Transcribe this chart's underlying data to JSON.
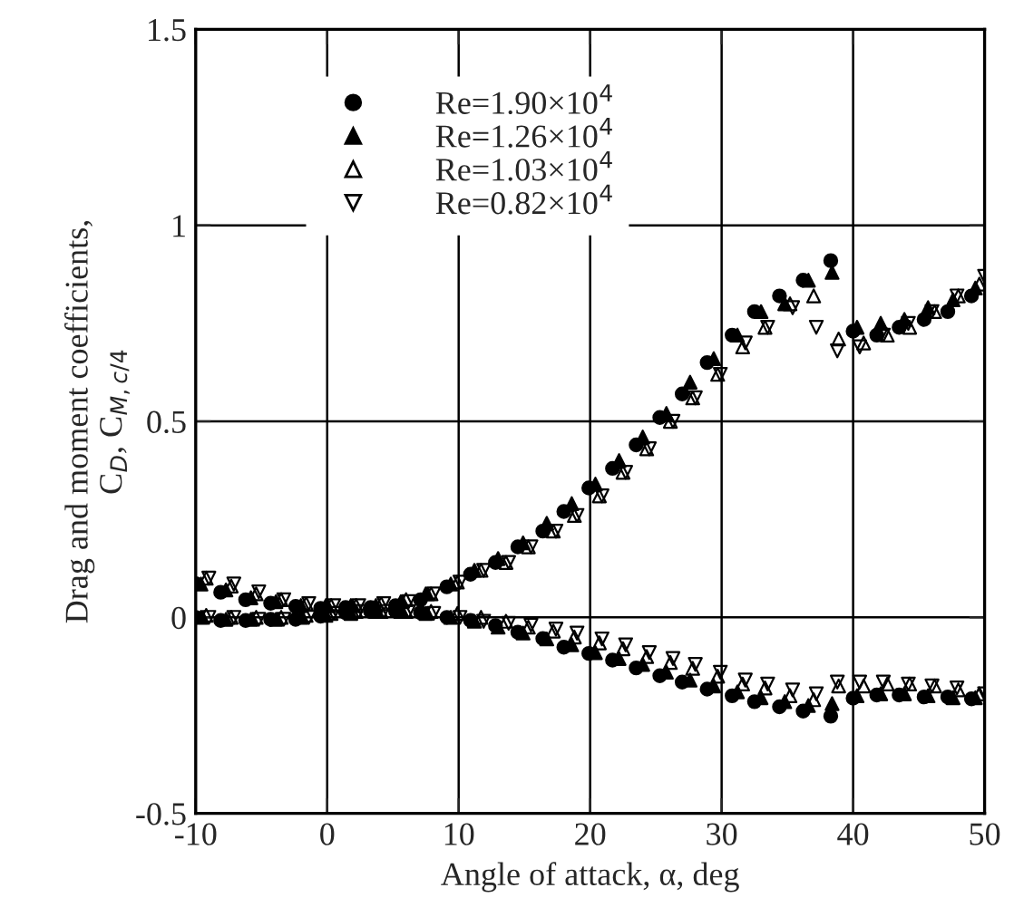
{
  "chart_data": {
    "type": "scatter",
    "xlabel": "Angle of attack, α, deg",
    "ylabel": "Drag and moment coefficients,\nC$_{D}$, C$_{M,c/4}$",
    "xlim": [
      -10,
      50
    ],
    "xticks": [
      -10,
      0,
      10,
      20,
      30,
      40,
      50
    ],
    "ylim": [
      -0.5,
      1.5
    ],
    "yticks": [
      -0.5,
      0,
      0.5,
      1,
      1.5
    ],
    "grid": true,
    "legend": "top left",
    "series": [
      {
        "name": "Re=1.90×10$^{4}$",
        "color": "#000000",
        "marker": "circle",
        "x": [
          -10,
          -8.1,
          -6.2,
          -4.3,
          -2.4,
          -0.5,
          1.4,
          3.3,
          5.2,
          7.1,
          9.1,
          10.9,
          12.8,
          14.5,
          16.4,
          18.0,
          19.9,
          21.7,
          23.5,
          25.3,
          27.0,
          28.9,
          30.8,
          32.5,
          34.4,
          36.2,
          38.3,
          40.0,
          41.8,
          43.5,
          45.4,
          47.2,
          49.0,
          -10,
          -8.1,
          -6.2,
          -4.3,
          -2.4,
          -0.5,
          1.4,
          3.3,
          5.2,
          7.1,
          9.1,
          10.9,
          12.8,
          14.5,
          16.4,
          18.0,
          19.9,
          21.7,
          23.5,
          25.3,
          27.0,
          28.9,
          30.8,
          32.5,
          34.4,
          36.2,
          38.3,
          40.0,
          41.8,
          43.5,
          45.4,
          47.2,
          49.0
        ],
        "values": [
          0.086,
          0.064,
          0.045,
          0.036,
          0.028,
          0.023,
          0.025,
          0.025,
          0.03,
          0.045,
          0.078,
          0.11,
          0.14,
          0.18,
          0.22,
          0.27,
          0.33,
          0.38,
          0.44,
          0.51,
          0.57,
          0.65,
          0.72,
          0.78,
          0.82,
          0.86,
          0.91,
          0.73,
          0.72,
          0.74,
          0.76,
          0.78,
          0.82,
          0.0,
          -0.008,
          -0.008,
          -0.005,
          -0.005,
          0.003,
          0.012,
          0.015,
          0.016,
          0.012,
          0.0,
          -0.008,
          -0.021,
          -0.038,
          -0.054,
          -0.076,
          -0.092,
          -0.109,
          -0.129,
          -0.149,
          -0.165,
          -0.183,
          -0.2,
          -0.215,
          -0.228,
          -0.239,
          -0.252,
          -0.206,
          -0.198,
          -0.198,
          -0.203,
          -0.203,
          -0.208
        ]
      },
      {
        "name": "Re=1.26×10$^{4}$",
        "color": "#000000",
        "marker": "triangle",
        "x": [
          -9.6,
          -7.7,
          -5.8,
          -3.9,
          -2.0,
          -0.1,
          1.8,
          3.7,
          5.6,
          7.5,
          9.4,
          11.2,
          13.0,
          14.9,
          16.7,
          18.6,
          20.4,
          22.2,
          24.0,
          25.8,
          27.6,
          29.4,
          31.2,
          33.0,
          34.8,
          36.6,
          38.4,
          40.3,
          42.1,
          43.9,
          45.7,
          47.6,
          49.3,
          -9.6,
          -7.7,
          -5.8,
          -3.9,
          -2.0,
          -0.1,
          1.8,
          3.7,
          5.6,
          7.5,
          9.4,
          11.2,
          13.0,
          14.9,
          16.7,
          18.6,
          20.4,
          22.2,
          24.0,
          25.8,
          27.6,
          29.4,
          31.2,
          33.0,
          34.8,
          36.6,
          38.4,
          40.3,
          42.1,
          43.9,
          45.7,
          47.6,
          49.3
        ],
        "values": [
          0.085,
          0.07,
          0.05,
          0.04,
          0.03,
          0.03,
          0.03,
          0.03,
          0.04,
          0.06,
          0.085,
          0.12,
          0.15,
          0.19,
          0.24,
          0.29,
          0.34,
          0.4,
          0.46,
          0.52,
          0.6,
          0.66,
          0.72,
          0.78,
          0.8,
          0.86,
          0.88,
          0.74,
          0.75,
          0.76,
          0.79,
          0.81,
          0.84,
          0.0,
          -0.005,
          -0.005,
          -0.005,
          0.0,
          0.005,
          0.01,
          0.015,
          0.015,
          0.01,
          0.0,
          -0.01,
          -0.025,
          -0.04,
          -0.055,
          -0.07,
          -0.09,
          -0.105,
          -0.12,
          -0.14,
          -0.16,
          -0.175,
          -0.19,
          -0.205,
          -0.215,
          -0.225,
          -0.22,
          -0.2,
          -0.195,
          -0.195,
          -0.2,
          -0.205,
          -0.205
        ]
      },
      {
        "name": "Re=1.03×10$^{4}$",
        "color": "#000000",
        "marker": "triangle-open",
        "x": [
          -9.2,
          -7.3,
          -5.4,
          -3.5,
          -1.6,
          0.3,
          2.2,
          4.1,
          6.0,
          7.9,
          9.9,
          11.7,
          13.6,
          15.3,
          17.2,
          18.8,
          20.7,
          22.5,
          24.3,
          26.1,
          27.8,
          29.7,
          31.6,
          33.3,
          35.2,
          37.0,
          38.9,
          40.8,
          42.6,
          44.3,
          46.2,
          48.0,
          49.6,
          -9.2,
          -7.3,
          -5.4,
          -3.5,
          -1.6,
          0.3,
          2.2,
          4.1,
          6.0,
          7.9,
          9.9,
          11.7,
          13.6,
          15.3,
          17.2,
          18.8,
          20.7,
          22.5,
          24.3,
          26.1,
          27.8,
          29.7,
          31.6,
          33.3,
          35.2,
          37.0,
          38.9,
          40.8,
          42.6,
          44.3,
          46.2,
          48.0,
          49.6
        ],
        "values": [
          0.1,
          0.08,
          0.06,
          0.045,
          0.035,
          0.03,
          0.03,
          0.035,
          0.045,
          0.06,
          0.09,
          0.12,
          0.14,
          0.18,
          0.22,
          0.26,
          0.31,
          0.37,
          0.43,
          0.5,
          0.56,
          0.62,
          0.69,
          0.74,
          0.8,
          0.82,
          0.71,
          0.7,
          0.72,
          0.74,
          0.78,
          0.82,
          0.85,
          0.005,
          0.0,
          0.0,
          0.0,
          0.005,
          0.01,
          0.015,
          0.015,
          0.015,
          0.015,
          0.01,
          0.0,
          -0.01,
          -0.025,
          -0.035,
          -0.05,
          -0.065,
          -0.08,
          -0.1,
          -0.115,
          -0.13,
          -0.15,
          -0.17,
          -0.18,
          -0.2,
          -0.21,
          -0.175,
          -0.175,
          -0.17,
          -0.17,
          -0.175,
          -0.185,
          -0.195
        ]
      },
      {
        "name": "Re=0.82×10$^{4}$",
        "color": "#000000",
        "marker": "triangle-down-open",
        "x": [
          -9.0,
          -7.1,
          -5.2,
          -3.3,
          -1.4,
          0.5,
          2.4,
          4.3,
          6.2,
          8.1,
          10.1,
          11.9,
          13.8,
          15.5,
          17.4,
          19.0,
          20.9,
          22.7,
          24.5,
          26.3,
          28.0,
          29.9,
          31.8,
          33.5,
          35.4,
          37.2,
          38.8,
          40.5,
          42.3,
          44.2,
          46.0,
          47.9,
          50.0,
          -9.0,
          -7.1,
          -5.2,
          -3.3,
          -1.4,
          0.5,
          2.4,
          4.3,
          6.2,
          8.1,
          10.1,
          11.9,
          13.8,
          15.5,
          17.4,
          19.0,
          20.9,
          22.7,
          24.5,
          26.3,
          28.0,
          29.9,
          31.8,
          33.5,
          35.4,
          37.2,
          38.8,
          40.5,
          42.3,
          44.2,
          46.0,
          47.9,
          50.0
        ],
        "values": [
          0.1,
          0.085,
          0.065,
          0.045,
          0.035,
          0.03,
          0.03,
          0.035,
          0.04,
          0.06,
          0.09,
          0.12,
          0.14,
          0.18,
          0.22,
          0.26,
          0.31,
          0.37,
          0.43,
          0.5,
          0.56,
          0.62,
          0.7,
          0.74,
          0.79,
          0.74,
          0.68,
          0.69,
          0.72,
          0.75,
          0.78,
          0.82,
          0.87,
          0.0,
          0.0,
          -0.005,
          -0.005,
          0.0,
          0.01,
          0.015,
          0.015,
          0.015,
          0.01,
          0.0,
          -0.01,
          -0.015,
          -0.02,
          -0.03,
          -0.04,
          -0.055,
          -0.07,
          -0.09,
          -0.105,
          -0.12,
          -0.14,
          -0.16,
          -0.17,
          -0.185,
          -0.195,
          -0.165,
          -0.165,
          -0.165,
          -0.17,
          -0.175,
          -0.18,
          -0.195
        ]
      }
    ]
  }
}
